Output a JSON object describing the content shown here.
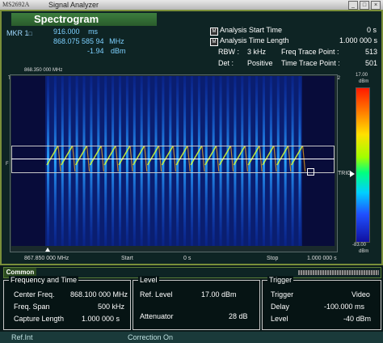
{
  "window": {
    "model": "MS2692A",
    "app_title": "Signal Analyzer",
    "buttons": [
      "_",
      "□",
      "×"
    ]
  },
  "title": "Spectrogram",
  "marker": {
    "label": "MKR 1",
    "time": "916.000",
    "time_unit": "ms",
    "freq": "868.075 585 94",
    "freq_unit": "MHz",
    "level": "-1.94",
    "level_unit": "dBm"
  },
  "analysis": {
    "start_label": "Analysis Start Time",
    "start_value": "0 s",
    "length_label": "Analysis Time Length",
    "length_value": "1.000 000 s"
  },
  "settings": {
    "rbw_label": "RBW :",
    "rbw_value": "3 kHz",
    "det_label": "Det :",
    "det_value": "Positive",
    "freq_tp_label": "Freq Trace Point :",
    "freq_tp_value": "513",
    "time_tp_label": "Time Trace Point :",
    "time_tp_value": "501"
  },
  "plot": {
    "top_freq": "868.350 000 MHz",
    "bottom_freq": "867.850 000 MHz",
    "t1": "T1",
    "t2": "T2",
    "f": "F",
    "trig": "TRIG",
    "start_label": "Start",
    "start_value": "0 s",
    "stop_label": "Stop",
    "stop_value": "1.000 000 s",
    "scale_top": "17.00",
    "scale_top_unit": "dBm",
    "scale_bottom": "-83.00",
    "scale_bottom_unit": "dBm"
  },
  "common_tab": "Common",
  "freq_time": {
    "title": "Frequency and Time",
    "center_label": "Center Freq.",
    "center_value": "868.100 000 MHz",
    "span_label": "Freq. Span",
    "span_value": "500 kHz",
    "capture_label": "Capture Length",
    "capture_value": "1.000 000 s"
  },
  "level": {
    "title": "Level",
    "ref_label": "Ref. Level",
    "ref_value": "17.00 dBm",
    "att_label": "Attenuator",
    "att_value": "28 dB"
  },
  "trigger": {
    "title": "Trigger",
    "trig_label": "Trigger",
    "trig_value": "Video",
    "delay_label": "Delay",
    "delay_value": "-100.000 ms",
    "level_label": "Level",
    "level_value": "-40 dBm"
  },
  "status": {
    "ref": "Ref.Int",
    "correction": "Correction On"
  },
  "colors": {
    "accent": "#3c7d3e",
    "marker": "#7dd0ff",
    "plot_bg": "#0a1e70"
  }
}
